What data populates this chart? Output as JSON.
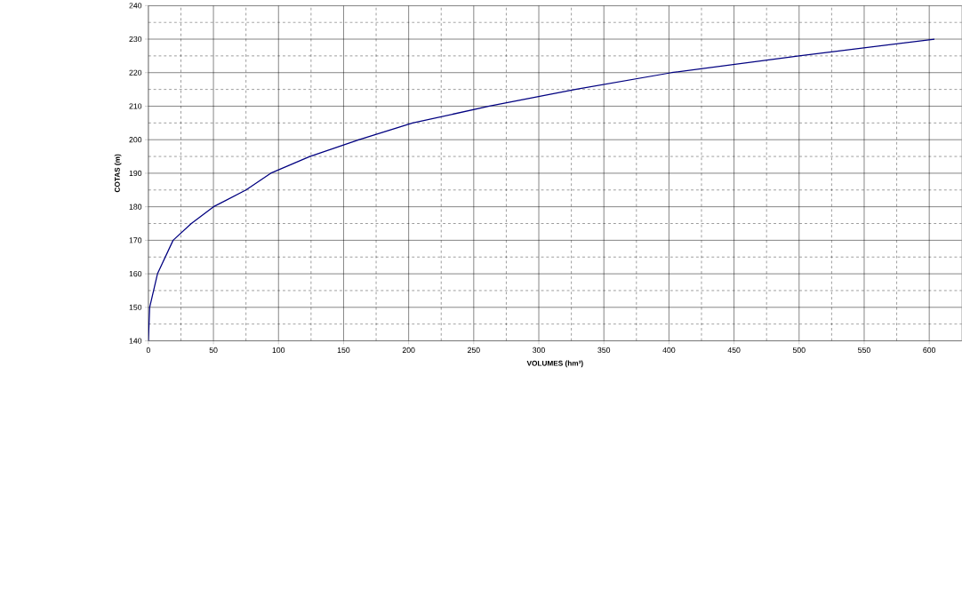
{
  "chart_data": {
    "type": "line",
    "xlabel": "VOLUMES (hm³)",
    "ylabel": "COTAS (m)",
    "series": [
      {
        "color": "#000080",
        "x": [
          0,
          1,
          7,
          19,
          33,
          50,
          75,
          94,
          124,
          162,
          203,
          262,
          328,
          402,
          500,
          604
        ],
        "values": [
          140,
          150,
          160,
          170,
          175,
          180,
          185,
          190,
          195,
          200,
          205,
          210,
          215,
          220,
          225,
          230
        ]
      }
    ],
    "xlim": [
      0,
      625
    ],
    "ylim": [
      140,
      240
    ],
    "xticks": [
      0,
      {
        "value": 25,
        "label": null
      },
      50,
      {
        "value": 75,
        "label": null
      },
      100,
      {
        "value": 125,
        "label": null
      },
      150,
      {
        "value": 175,
        "label": null
      },
      200,
      {
        "value": 225,
        "label": null
      },
      250,
      {
        "value": 275,
        "label": null
      },
      300,
      {
        "value": 325,
        "label": null
      },
      350,
      {
        "value": 375,
        "label": null
      },
      400,
      {
        "value": 425,
        "label": null
      },
      450,
      {
        "value": 475,
        "label": null
      },
      500,
      {
        "value": 525,
        "label": null
      },
      550,
      {
        "value": 575,
        "label": null
      },
      600
    ],
    "yticks": [
      140,
      {
        "value": 145,
        "label": null
      },
      150,
      {
        "value": 155,
        "label": null
      },
      160,
      {
        "value": 165,
        "label": null
      },
      170,
      {
        "value": 175,
        "label": null
      },
      180,
      {
        "value": 185,
        "label": null
      },
      190,
      {
        "value": 195,
        "label": null
      },
      200,
      {
        "value": 205,
        "label": null
      },
      210,
      {
        "value": 215,
        "label": null
      },
      220,
      {
        "value": 225,
        "label": null
      },
      230,
      {
        "value": 235,
        "label": null
      },
      240
    ],
    "grid": true,
    "marker": "none",
    "line_style": "solid"
  }
}
